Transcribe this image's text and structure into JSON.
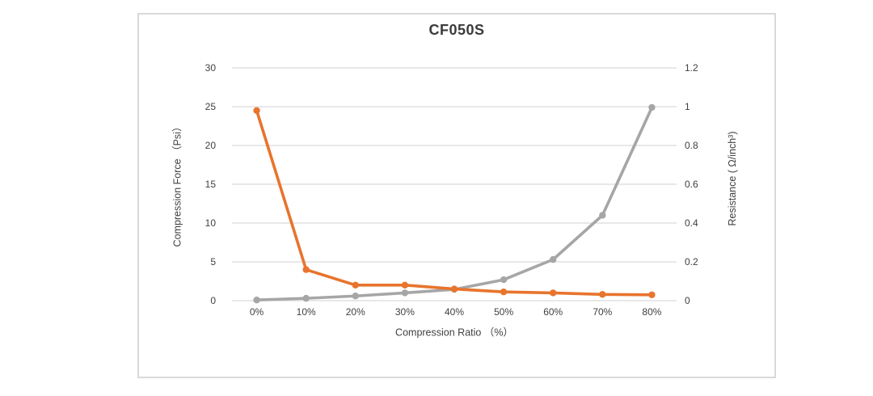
{
  "chart_data": {
    "type": "line",
    "title": "CF050S",
    "categories": [
      "0%",
      "10%",
      "20%",
      "30%",
      "40%",
      "50%",
      "60%",
      "70%",
      "80%"
    ],
    "xlabel": "Compression Ratio （%）",
    "left_axis": {
      "label": "Compression Force （Psi）",
      "ticks": [
        "0",
        "5",
        "10",
        "15",
        "20",
        "25",
        "30"
      ],
      "min": 0,
      "max": 30
    },
    "right_axis": {
      "label": "Resistance ( Ω/inch³)",
      "ticks": [
        "0",
        "0.2",
        "0.4",
        "0.6",
        "0.8",
        "1",
        "1.2"
      ],
      "min": 0,
      "max": 1.2
    },
    "series": [
      {
        "name": "Compression Force (Psi)",
        "axis": "left",
        "color": "#a6a6a6",
        "values": [
          0.08,
          0.3,
          0.6,
          1.0,
          1.45,
          2.7,
          5.3,
          11,
          24.9
        ]
      },
      {
        "name": "Resistance (Ω/inch³)",
        "axis": "right",
        "color": "#e8742d",
        "values": [
          0.98,
          0.16,
          0.08,
          0.08,
          0.06,
          0.045,
          0.04,
          0.032,
          0.03
        ]
      }
    ],
    "grid": true,
    "legend": false,
    "gridline_color": "#d9d9d9",
    "background_color": "#ffffff",
    "border_color": "#d9d9d9"
  }
}
